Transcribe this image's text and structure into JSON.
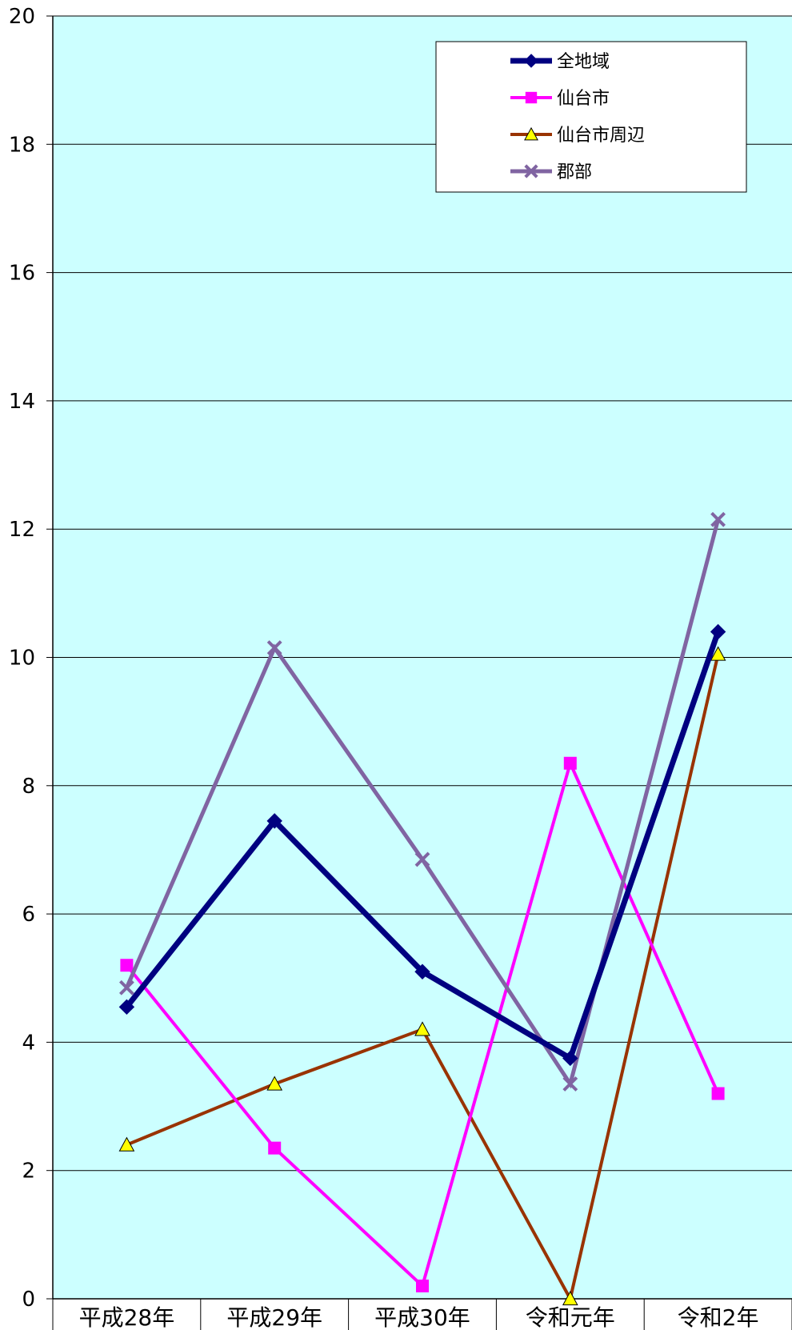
{
  "chart_data": {
    "type": "line",
    "categories": [
      "平成28年",
      "平成29年",
      "平成30年",
      "令和元年",
      "令和2年"
    ],
    "ylim": [
      0,
      20
    ],
    "yticks": [
      "0",
      "2",
      "4",
      "6",
      "8",
      "10",
      "12",
      "14",
      "16",
      "18",
      "20"
    ],
    "grid": true,
    "legend_position": "top-right",
    "plot_background": "#CCFFFF",
    "series": [
      {
        "name": "全地域",
        "values": [
          4.55,
          7.45,
          5.1,
          3.75,
          10.4
        ],
        "color": "#000080",
        "marker": "diamond",
        "width": 7
      },
      {
        "name": "仙台市",
        "values": [
          5.2,
          2.35,
          0.2,
          8.35,
          3.2
        ],
        "color": "#FF00FF",
        "marker": "square",
        "width": 4
      },
      {
        "name": "仙台市周辺",
        "values": [
          2.4,
          3.35,
          4.2,
          0.0,
          10.05
        ],
        "color": "#993300",
        "marker": "triangle",
        "width": 4
      },
      {
        "name": "郡部",
        "values": [
          4.85,
          10.15,
          6.85,
          3.35,
          12.15
        ],
        "color": "#8064A2",
        "marker": "x",
        "width": 5
      }
    ]
  }
}
